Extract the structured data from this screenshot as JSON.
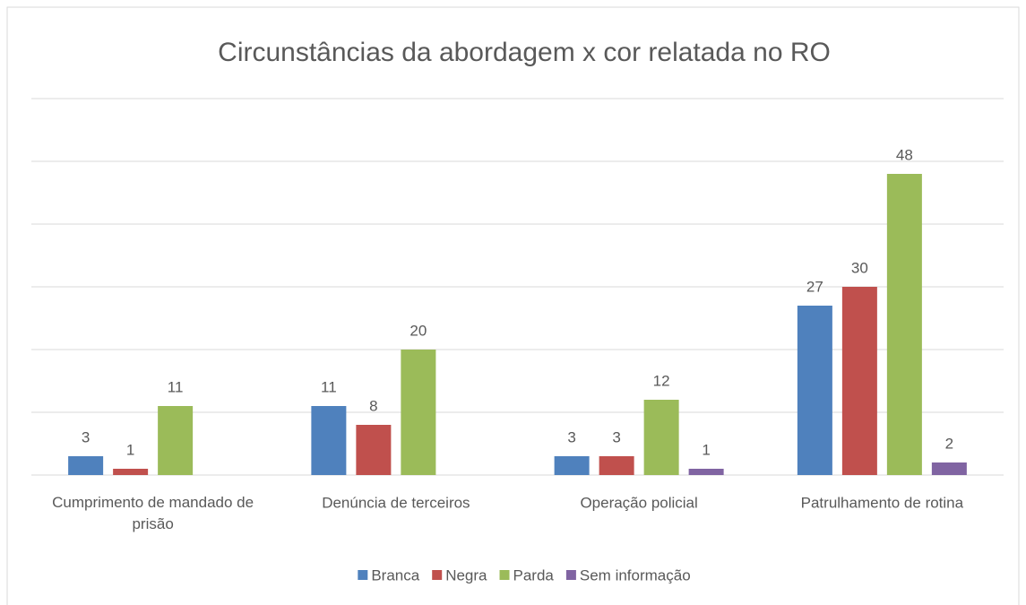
{
  "chart_data": {
    "type": "bar",
    "title": "Circunstâncias da abordagem x cor relatada no RO",
    "categories": [
      "Cumprimento de mandado de prisão",
      "Denúncia de terceiros",
      "Operação policial",
      "Patrulhamento de rotina"
    ],
    "series": [
      {
        "name": "Branca",
        "color": "#4f81bd",
        "values": [
          3,
          11,
          3,
          27
        ]
      },
      {
        "name": "Negra",
        "color": "#c0504d",
        "values": [
          1,
          8,
          3,
          30
        ]
      },
      {
        "name": "Parda",
        "color": "#9bbb59",
        "values": [
          11,
          20,
          12,
          48
        ]
      },
      {
        "name": "Sem informação",
        "color": "#8064a2",
        "values": [
          null,
          null,
          1,
          2
        ]
      }
    ],
    "ylim": [
      0,
      60
    ],
    "yticks": [
      0,
      10,
      20,
      30,
      40,
      50,
      60
    ],
    "grid": true,
    "ytick_labels": false,
    "legend": "bottom"
  }
}
